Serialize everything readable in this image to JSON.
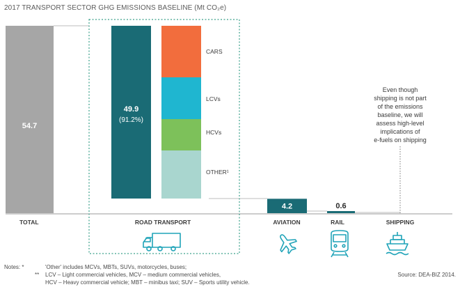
{
  "chart_data": {
    "type": "bar",
    "title": "2017 TRANSPORT SECTOR GHG EMISSIONS BASELINE (Mt CO₂e)",
    "unit": "Mt CO2e",
    "bars": [
      {
        "category": "TOTAL",
        "value": 54.7,
        "label": "54.7"
      },
      {
        "category": "ROAD TRANSPORT",
        "value": 49.9,
        "label": "49.9",
        "share_label": "(91.2%)"
      },
      {
        "category": "AVIATION",
        "value": 4.2,
        "label": "4.2"
      },
      {
        "category": "RAIL",
        "value": 0.6,
        "label": "0.6"
      },
      {
        "category": "SHIPPING",
        "value": null,
        "label": ""
      }
    ],
    "road_breakdown": [
      {
        "name": "CARS",
        "color": "#f26d3d"
      },
      {
        "name": "LCVs",
        "color": "#1fb6d0"
      },
      {
        "name": "HCVs",
        "color": "#7dc15a"
      },
      {
        "name": "OTHER¹",
        "color": "#a9d6cf"
      }
    ],
    "colors": {
      "total": "#a6a6a6",
      "road": "#1a6b75",
      "aviation": "#1a6b75",
      "rail": "#1a6b75",
      "dotted_box": "#3aa08a"
    }
  },
  "callout": {
    "lines": [
      "Even though",
      "shipping is not part",
      "of the emissions",
      "baseline, we will",
      "assess high-level",
      "implications of",
      "e-fuels on shipping"
    ]
  },
  "icons": {
    "road": "truck-icon",
    "aviation": "airplane-icon",
    "rail": "train-icon",
    "shipping": "ship-icon"
  },
  "notes": {
    "line1_marker": "Notes: *",
    "line1": "'Other' includes MCVs, MBTs, SUVs, motorcycles, buses;",
    "line2_marker": "**",
    "line2": "LCV – Light commercial vehicles, MCV – medium commercial vehicles,",
    "line3": "HCV – Heavy commercial vehicle; MBT – minibus taxi; SUV – Sports utility vehicle.",
    "source": "Source: DEA-BIZ 2014."
  }
}
